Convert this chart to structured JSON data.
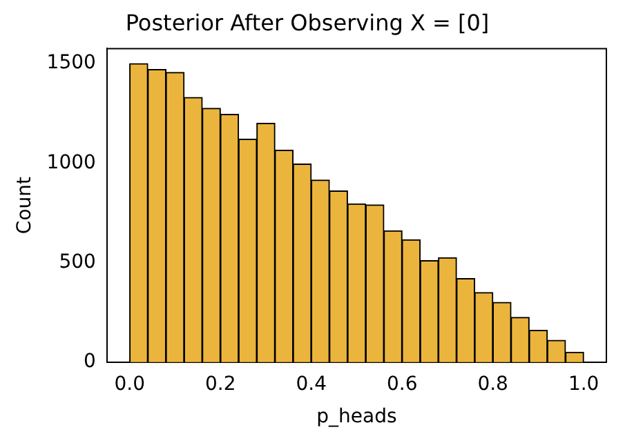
{
  "chart_data": {
    "type": "histogram",
    "title": "Posterior After Observing X = [0]",
    "xlabel": "p_heads",
    "ylabel": "Count",
    "bins": [
      0,
      0.04,
      0.08,
      0.12,
      0.16,
      0.2,
      0.24,
      0.28,
      0.32,
      0.36,
      0.4,
      0.44,
      0.48,
      0.52,
      0.56,
      0.6,
      0.64,
      0.68,
      0.72,
      0.76,
      0.8,
      0.84,
      0.88,
      0.92,
      0.96,
      1.0
    ],
    "values": [
      1500,
      1470,
      1455,
      1330,
      1275,
      1245,
      1120,
      1200,
      1065,
      995,
      915,
      860,
      795,
      790,
      660,
      615,
      510,
      525,
      420,
      350,
      300,
      225,
      160,
      110,
      50
    ],
    "color": "#ebb53d",
    "xlim": [
      -0.05,
      1.05
    ],
    "xticks": [
      {
        "value": 0,
        "label": "0.0"
      },
      {
        "value": 0.2,
        "label": "0.2"
      },
      {
        "value": 0.4,
        "label": "0.4"
      },
      {
        "value": 0.6,
        "label": "0.6"
      },
      {
        "value": 0.8,
        "label": "0.8"
      },
      {
        "value": 1,
        "label": "1.0"
      }
    ],
    "ylim": [
      0,
      1575
    ],
    "yticks": [
      0,
      500,
      1000,
      1500
    ],
    "grid": false,
    "legend": false
  }
}
